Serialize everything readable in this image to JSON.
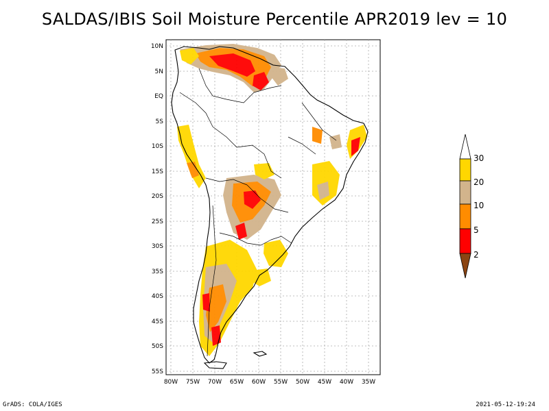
{
  "title": "SALDAS/IBIS Soil Moisture Percentile APR2019 lev = 10",
  "footer": {
    "left": "GrADS: COLA/IGES",
    "right": "2021-05-12-19:24"
  },
  "map": {
    "lon_labels": [
      "80W",
      "75W",
      "70W",
      "65W",
      "60W",
      "55W",
      "50W",
      "45W",
      "40W",
      "35W"
    ],
    "lat_labels": [
      "10N",
      "5N",
      "EQ",
      "5S",
      "10S",
      "15S",
      "20S",
      "25S",
      "30S",
      "35S",
      "40S",
      "45S",
      "50S",
      "55S"
    ],
    "lon_range": [
      -81,
      -33
    ],
    "lat_range": [
      -56,
      11
    ],
    "grid_lines": "dotted"
  },
  "legend": {
    "labels": [
      "2",
      "5",
      "10",
      "20",
      "30"
    ],
    "colors": [
      "#8b4513",
      "#ff0000",
      "#ff8c00",
      "#d2b48c",
      "#ffd700",
      "#ffffff"
    ],
    "type": "colorbar"
  }
}
